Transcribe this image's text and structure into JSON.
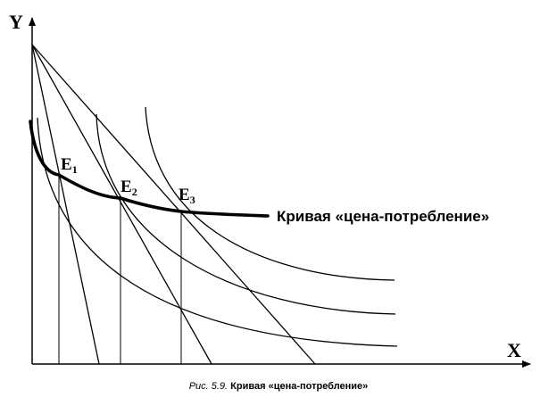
{
  "figure": {
    "axis_y_label": "Y",
    "axis_x_label": "X",
    "points": [
      {
        "letter": "E",
        "sub": "1"
      },
      {
        "letter": "E",
        "sub": "2"
      },
      {
        "letter": "E",
        "sub": "3"
      }
    ],
    "curve_label": "Кривая «цена-потребление»"
  },
  "caption": {
    "number": "Рис. 5.9.",
    "title": "Кривая «цена-потребление»"
  },
  "colors": {
    "ink": "#000000",
    "background": "#ffffff"
  }
}
